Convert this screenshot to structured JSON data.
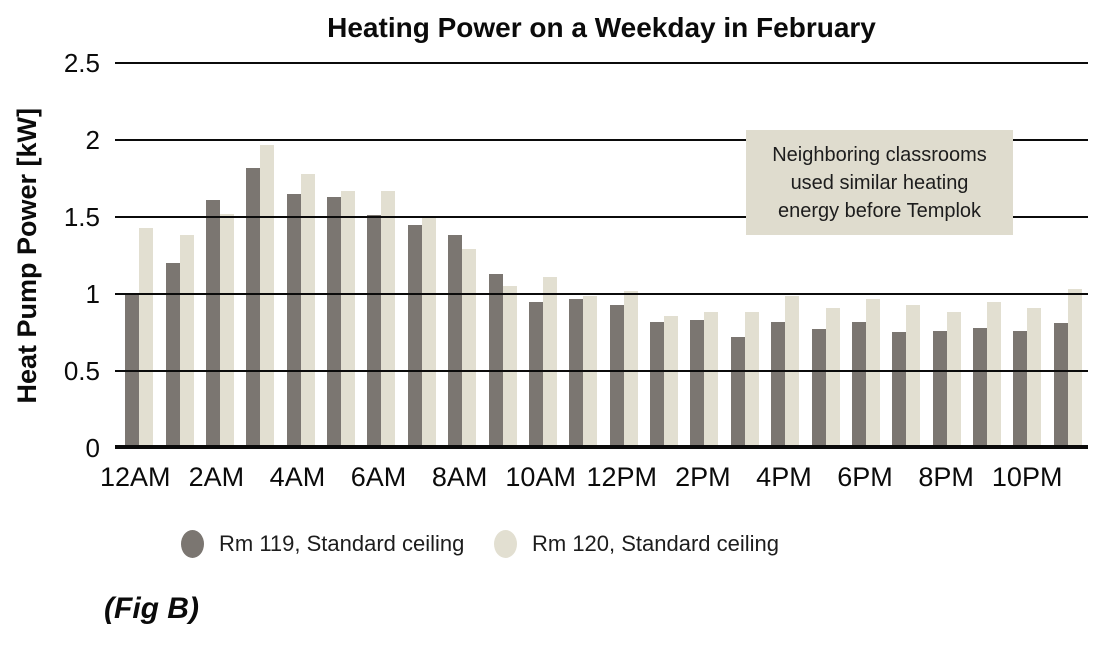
{
  "fig_caption": "(Fig B)",
  "annotation": {
    "lines": [
      "Neighboring classrooms",
      "used similar heating",
      "energy before Templok"
    ],
    "bg_color": "#dfdcce"
  },
  "legend": [
    {
      "label": "Rm 119, Standard ceiling",
      "color": "#7b7671"
    },
    {
      "label": "Rm 120, Standard ceiling",
      "color": "#e2dfd1"
    }
  ],
  "colors": {
    "dark_bar": "#7b7671",
    "light_bar": "#e2dfd1",
    "gridline": "#0b0b0b",
    "annotation_bg": "#dfdcce",
    "text": "#111111"
  },
  "chart_data": {
    "type": "bar",
    "title": "Heating Power on a Weekday in February",
    "xlabel": "",
    "ylabel": "Heat Pump Power [kW]",
    "ylim": [
      0,
      2.5
    ],
    "yticks": [
      0,
      0.5,
      1,
      1.5,
      2,
      2.5
    ],
    "ytick_labels": [
      "0",
      "0.5",
      "1",
      "1.5",
      "2",
      "2.5"
    ],
    "grid": "horizontal, drawn over bars",
    "legend_position": "bottom",
    "annotation_text": "Neighboring classrooms used similar heating energy before Templok",
    "categories": [
      "12AM",
      "1AM",
      "2AM",
      "3AM",
      "4AM",
      "5AM",
      "6AM",
      "7AM",
      "8AM",
      "9AM",
      "10AM",
      "11AM",
      "12PM",
      "1PM",
      "2PM",
      "3PM",
      "4PM",
      "5PM",
      "6PM",
      "7PM",
      "8PM",
      "9PM",
      "10PM",
      "11PM"
    ],
    "xticks_shown": [
      "12AM",
      "2AM",
      "4AM",
      "6AM",
      "8AM",
      "10AM",
      "12PM",
      "2PM",
      "4PM",
      "6PM",
      "8PM",
      "10PM"
    ],
    "series": [
      {
        "name": "Rm 119, Standard ceiling",
        "color": "#7b7671",
        "values": [
          1.0,
          1.2,
          1.61,
          1.82,
          1.65,
          1.63,
          1.51,
          1.45,
          1.38,
          1.13,
          0.95,
          0.97,
          0.93,
          0.82,
          0.83,
          0.72,
          0.82,
          0.77,
          0.82,
          0.75,
          0.76,
          0.78,
          0.76,
          0.81
        ]
      },
      {
        "name": "Rm 120, Standard ceiling",
        "color": "#e2dfd1",
        "values": [
          1.43,
          1.38,
          1.52,
          1.97,
          1.78,
          1.67,
          1.67,
          1.5,
          1.29,
          1.05,
          1.11,
          0.99,
          1.02,
          0.86,
          0.88,
          0.88,
          0.99,
          0.91,
          0.97,
          0.93,
          0.88,
          0.95,
          0.91,
          1.03
        ]
      }
    ]
  }
}
